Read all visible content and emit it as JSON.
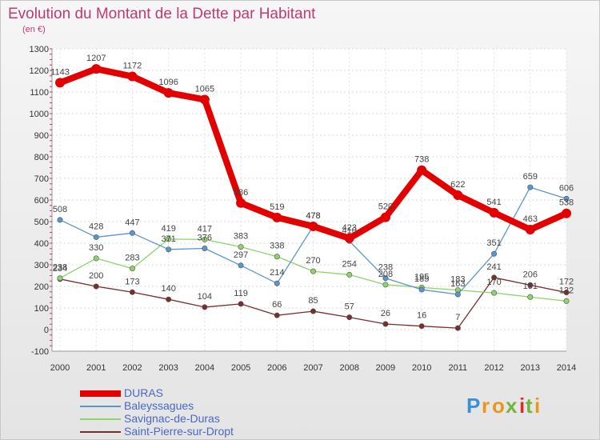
{
  "chart_data": {
    "type": "line",
    "title": "Evolution du Montant de la Dette par Habitant",
    "subtitle": "(en €)",
    "x": [
      "2000",
      "2001",
      "2002",
      "2003",
      "2004",
      "2005",
      "2006",
      "2007",
      "2008",
      "2009",
      "2010",
      "2011",
      "2012",
      "2013",
      "2014"
    ],
    "ylim": [
      -100,
      1300
    ],
    "yticks": [
      -100,
      0,
      100,
      200,
      300,
      400,
      500,
      600,
      700,
      800,
      900,
      1000,
      1100,
      1200,
      1300
    ],
    "grid": true,
    "legend_position": "bottom-left",
    "series": [
      {
        "name": "DURAS",
        "color": "#e20000",
        "values": [
          1143,
          1207,
          1172,
          1096,
          1065,
          586,
          519,
          478,
          423,
          520,
          738,
          622,
          541,
          463,
          538
        ],
        "labels": [
          "1143",
          "1207",
          "1172",
          "1096",
          "1065",
          "586",
          "519",
          "478",
          "423",
          "520",
          "738",
          "622",
          "541",
          "463",
          "538"
        ]
      },
      {
        "name": "Baleyssagues",
        "color": "#5b96cb",
        "values": [
          508,
          428,
          447,
          371,
          376,
          297,
          214,
          478,
          410,
          238,
          185,
          163,
          351,
          659,
          606
        ],
        "labels": [
          "508",
          "428",
          "447",
          "371",
          "376",
          "297",
          "214",
          "478",
          "410",
          "238",
          "185",
          "163",
          "351",
          "659",
          "606"
        ]
      },
      {
        "name": "Savignac-de-Duras",
        "color": "#8ed36b",
        "values": [
          238,
          330,
          283,
          419,
          417,
          383,
          338,
          270,
          254,
          208,
          195,
          183,
          170,
          151,
          132
        ],
        "labels": [
          "238",
          "330",
          "283",
          "419",
          "417",
          "383",
          "338",
          "270",
          "254",
          "208",
          "195",
          "183",
          "170",
          "151",
          "132"
        ]
      },
      {
        "name": "Saint-Pierre-sur-Dropt",
        "color": "#7a2d2d",
        "values": [
          234,
          200,
          173,
          140,
          104,
          119,
          66,
          85,
          57,
          26,
          16,
          7,
          241,
          206,
          172
        ],
        "labels": [
          "234",
          "200",
          "173",
          "140",
          "104",
          "119",
          "66",
          "85",
          "57",
          "26",
          "16",
          "7",
          "241",
          "206",
          "172"
        ]
      }
    ]
  },
  "logo": {
    "letters": [
      "P",
      "r",
      "o",
      "x",
      "i",
      "t",
      "i"
    ],
    "colors": [
      "#3b8fd6",
      "#e8961e",
      "#e8961e",
      "#6fb63a",
      "#e02a2a",
      "#6fb63a",
      "#e8961e"
    ]
  }
}
